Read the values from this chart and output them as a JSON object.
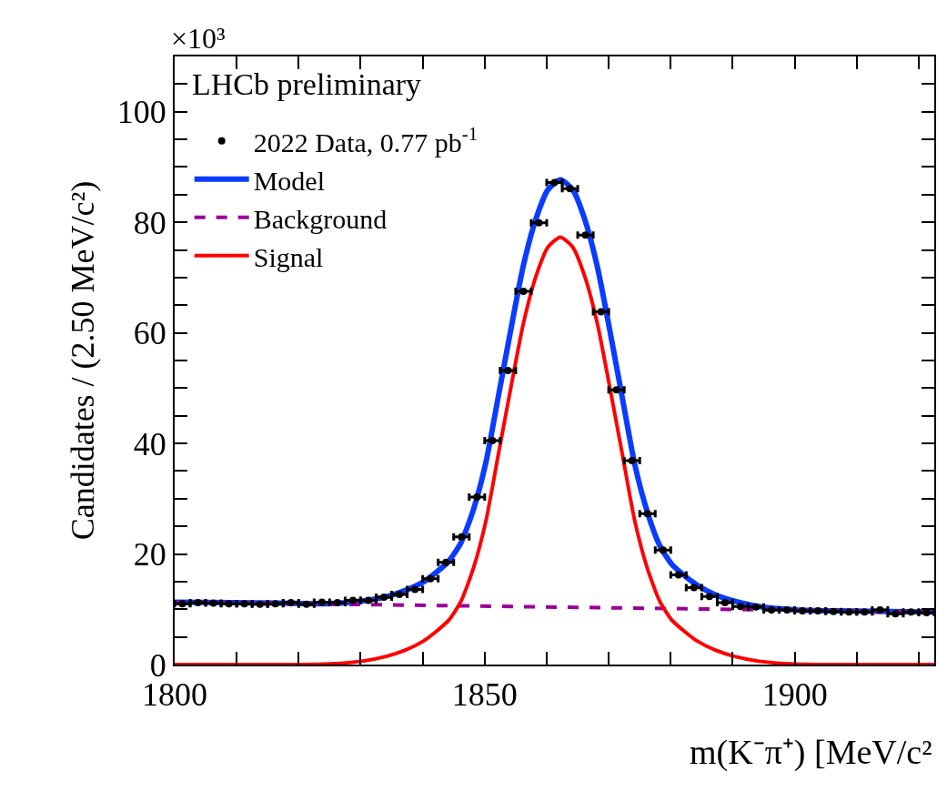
{
  "chart_data": {
    "type": "scatter",
    "title": "LHCb preliminary",
    "xlabel": "m(K⁻π⁺) [MeV/c²",
    "ylabel": "Candidates / (2.50 MeV/c²)",
    "annotations": [
      "×10³"
    ],
    "xlim": [
      1800,
      1922.5
    ],
    "xticks": [
      1800,
      {
        "value": 1810,
        "label": null
      },
      {
        "value": 1820,
        "label": null
      },
      {
        "value": 1830,
        "label": null
      },
      {
        "value": 1840,
        "label": null
      },
      1850,
      {
        "value": 1860,
        "label": null
      },
      {
        "value": 1870,
        "label": null
      },
      {
        "value": 1880,
        "label": null
      },
      {
        "value": 1890,
        "label": null
      },
      1900,
      {
        "value": 1910,
        "label": null
      },
      {
        "value": 1920,
        "label": null
      }
    ],
    "ylim": [
      0,
      110
    ],
    "yticks": [
      0,
      {
        "value": 5,
        "label": null
      },
      {
        "value": 10,
        "label": null
      },
      {
        "value": 15,
        "label": null
      },
      20,
      {
        "value": 25,
        "label": null
      },
      {
        "value": 30,
        "label": null
      },
      {
        "value": 35,
        "label": null
      },
      40,
      {
        "value": 45,
        "label": null
      },
      {
        "value": 50,
        "label": null
      },
      {
        "value": 55,
        "label": null
      },
      60,
      {
        "value": 65,
        "label": null
      },
      {
        "value": 70,
        "label": null
      },
      {
        "value": 75,
        "label": null
      },
      80,
      {
        "value": 85,
        "label": null
      },
      {
        "value": 90,
        "label": null
      },
      {
        "value": 95,
        "label": null
      },
      100,
      {
        "value": 105,
        "label": null
      }
    ],
    "legend": "top left",
    "series": [
      {
        "name": "2022 Data, 0.77 pb$^{-1}$",
        "color": "#000000",
        "marker": "circle",
        "x": [
          1801.25,
          1803.75,
          1806.25,
          1808.75,
          1811.25,
          1813.75,
          1816.25,
          1818.75,
          1821.25,
          1823.75,
          1826.25,
          1828.75,
          1831.25,
          1833.75,
          1836.25,
          1838.75,
          1841.25,
          1843.75,
          1846.25,
          1848.75,
          1851.25,
          1853.75,
          1856.25,
          1858.75,
          1861.25,
          1863.75,
          1866.25,
          1868.75,
          1871.25,
          1873.75,
          1876.25,
          1878.75,
          1881.25,
          1883.75,
          1886.25,
          1888.75,
          1891.25,
          1893.75,
          1896.25,
          1898.75,
          1901.25,
          1903.75,
          1906.25,
          1908.75,
          1911.25,
          1913.75,
          1916.25,
          1918.75,
          1921.25
        ],
        "values": [
          11.0,
          11.2,
          11.1,
          11.0,
          11.0,
          10.9,
          11.0,
          11.2,
          10.9,
          11.3,
          11.2,
          11.6,
          11.6,
          12.2,
          12.7,
          13.6,
          15.5,
          18.5,
          23.1,
          30.3,
          40.5,
          53.2,
          67.5,
          79.9,
          87.2,
          86.1,
          77.7,
          63.8,
          49.7,
          36.9,
          27.3,
          20.7,
          16.2,
          13.9,
          12.3,
          11.2,
          10.5,
          10.4,
          9.9,
          9.9,
          9.7,
          9.7,
          9.6,
          9.5,
          9.5,
          9.9,
          9.2,
          9.5,
          9.4
        ],
        "xerrors": [
          1.25,
          1.25,
          1.25,
          1.25,
          1.25,
          1.25,
          1.25,
          1.25,
          1.25,
          1.25,
          1.25,
          1.25,
          1.25,
          1.25,
          1.25,
          1.25,
          1.25,
          1.25,
          1.25,
          1.25,
          1.25,
          1.25,
          1.25,
          1.25,
          1.25,
          1.25,
          1.25,
          1.25,
          1.25,
          1.25,
          1.25,
          1.25,
          1.25,
          1.25,
          1.25,
          1.25,
          1.25,
          1.25,
          1.25,
          1.25,
          1.25,
          1.25,
          1.25,
          1.25,
          1.25,
          1.25,
          1.25,
          1.25,
          1.25
        ]
      },
      {
        "name": "Model",
        "type": "line",
        "color": "#0a3cff",
        "line_style": "solid",
        "x": [
          1800,
          1817.2,
          1824.2,
          1830.2,
          1834.2,
          1837.2,
          1840.2,
          1842.2,
          1844.2,
          1846.2,
          1848.2,
          1850.2,
          1852.2,
          1854.2,
          1856.2,
          1858.2,
          1860.2,
          1862.2,
          1864.2,
          1866.2,
          1868.2,
          1870.2,
          1872.2,
          1874.2,
          1876.2,
          1878.2,
          1880.2,
          1882.2,
          1884.2,
          1887.2,
          1890.2,
          1894.2,
          1900.2,
          1907.2,
          1922.5
        ],
        "values": [
          11.3,
          11.1,
          11.0,
          11.5,
          12.3,
          13.4,
          15.0,
          16.7,
          18.7,
          22.1,
          28.1,
          36.6,
          48.5,
          60.5,
          72,
          80.4,
          85.9,
          87.7,
          85.9,
          80.3,
          71.8,
          60.3,
          48.2,
          36.2,
          27.7,
          21.6,
          18.1,
          16.1,
          14.4,
          12.6,
          11.5,
          10.5,
          9.9,
          9.7,
          9.5
        ]
      },
      {
        "name": "Background",
        "type": "line",
        "color": "#990099",
        "line_style": "dashed",
        "x": [
          1800,
          1922.5
        ],
        "values": [
          11.3,
          9.5
        ]
      },
      {
        "name": "Signal",
        "type": "line",
        "color": "#ff0000",
        "line_style": "solid",
        "x": [
          1800,
          1817.2,
          1824.2,
          1830.2,
          1834.2,
          1837.2,
          1840.2,
          1842.2,
          1844.2,
          1846.2,
          1848.2,
          1850.2,
          1852.2,
          1854.2,
          1856.2,
          1858.2,
          1860.2,
          1862.2,
          1864.2,
          1866.2,
          1868.2,
          1870.2,
          1872.2,
          1874.2,
          1876.2,
          1878.2,
          1880.2,
          1882.2,
          1884.2,
          1887.2,
          1890.2,
          1894.2,
          1900.2,
          1907.2,
          1922.5
        ],
        "values": [
          0,
          0,
          0.1,
          0.6,
          1.5,
          2.6,
          4.3,
          6,
          8,
          11.5,
          17.5,
          26,
          38,
          50,
          61.5,
          70,
          75.5,
          77.3,
          75.5,
          70,
          61.5,
          50,
          38,
          26,
          17.5,
          11.5,
          8,
          6,
          4.3,
          2.6,
          1.5,
          0.6,
          0.1,
          0,
          0
        ]
      }
    ]
  }
}
